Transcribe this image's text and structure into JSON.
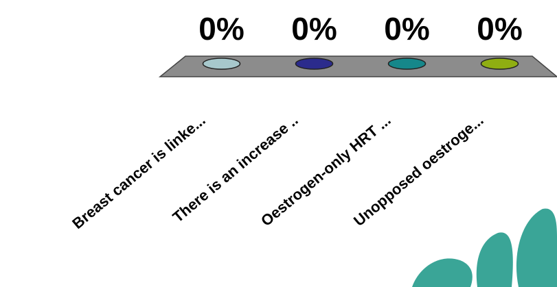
{
  "chart_data": {
    "type": "bar",
    "categories": [
      "Breast cancer is linke...",
      "There is an increase ..",
      "Oestrogen-only HRT ...",
      "Unopposed oestroge..."
    ],
    "values": [
      0,
      0,
      0,
      0
    ],
    "value_labels": [
      "0%",
      "0%",
      "0%",
      "0%"
    ],
    "colors": [
      "#a7c8cc",
      "#2b2b8c",
      "#16878a",
      "#8fae12"
    ]
  }
}
